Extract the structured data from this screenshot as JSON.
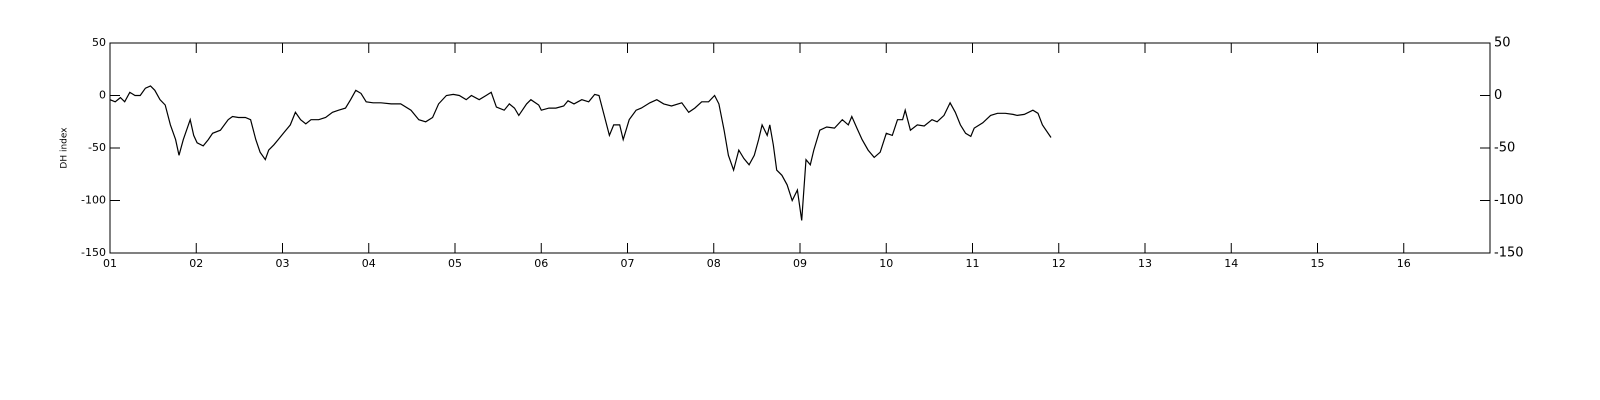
{
  "chart_data": {
    "type": "line",
    "ylabel": "DH index",
    "x": [
      1.0,
      1.06,
      1.12,
      1.17,
      1.23,
      1.29,
      1.35,
      1.41,
      1.47,
      1.52,
      1.58,
      1.64,
      1.7,
      1.76,
      1.8,
      1.85,
      1.93,
      1.97,
      2.01,
      2.08,
      2.14,
      2.19,
      2.28,
      2.37,
      2.42,
      2.49,
      2.57,
      2.63,
      2.69,
      2.74,
      2.8,
      2.84,
      2.9,
      2.95,
      3.02,
      3.09,
      3.15,
      3.21,
      3.27,
      3.33,
      3.42,
      3.5,
      3.58,
      3.65,
      3.73,
      3.79,
      3.85,
      3.91,
      3.97,
      4.05,
      4.14,
      4.26,
      4.37,
      4.49,
      4.58,
      4.66,
      4.74,
      4.81,
      4.9,
      4.98,
      5.05,
      5.13,
      5.19,
      5.28,
      5.36,
      5.42,
      5.48,
      5.57,
      5.63,
      5.69,
      5.74,
      5.83,
      5.88,
      5.97,
      6.0,
      6.09,
      6.17,
      6.26,
      6.31,
      6.38,
      6.47,
      6.55,
      6.62,
      6.67,
      6.73,
      6.79,
      6.84,
      6.91,
      6.95,
      7.02,
      7.1,
      7.16,
      7.26,
      7.34,
      7.42,
      7.51,
      7.63,
      7.71,
      7.78,
      7.86,
      7.94,
      8.01,
      8.06,
      8.12,
      8.17,
      8.23,
      8.29,
      8.35,
      8.41,
      8.47,
      8.52,
      8.56,
      8.62,
      8.65,
      8.69,
      8.73,
      8.79,
      8.85,
      8.91,
      8.97,
      9.02,
      9.07,
      9.12,
      9.16,
      9.23,
      9.31,
      9.4,
      9.49,
      9.56,
      9.6,
      9.66,
      9.72,
      9.79,
      9.86,
      9.93,
      10.0,
      10.07,
      10.13,
      10.19,
      10.22,
      10.28,
      10.36,
      10.44,
      10.53,
      10.59,
      10.67,
      10.74,
      10.8,
      10.86,
      10.92,
      10.98,
      11.02,
      11.12,
      11.21,
      11.29,
      11.38,
      11.47,
      11.52,
      11.6,
      11.7,
      11.76,
      11.81,
      11.91
    ],
    "values": [
      -4,
      -6,
      -2,
      -6,
      3,
      0,
      0,
      7,
      9,
      5,
      -4,
      -9,
      -28,
      -42,
      -57,
      -42,
      -23,
      -38,
      -45,
      -48,
      -42,
      -36,
      -33,
      -23,
      -20,
      -21,
      -21,
      -23,
      -42,
      -54,
      -61,
      -52,
      -47,
      -42,
      -35,
      -28,
      -16,
      -23,
      -27,
      -23,
      -23,
      -21,
      -16,
      -14,
      -12,
      -4,
      5,
      2,
      -6,
      -7,
      -7,
      -8,
      -8,
      -14,
      -23,
      -25,
      -21,
      -8,
      0,
      1,
      0,
      -4,
      0,
      -4,
      0,
      3,
      -11,
      -14,
      -8,
      -12,
      -19,
      -8,
      -4,
      -9,
      -14,
      -12,
      -12,
      -10,
      -5,
      -8,
      -4,
      -6,
      1,
      0,
      -19,
      -38,
      -28,
      -28,
      -42,
      -23,
      -14,
      -12,
      -7,
      -4,
      -8,
      -10,
      -7,
      -16,
      -12,
      -6,
      -6,
      0,
      -8,
      -33,
      -57,
      -71,
      -52,
      -60,
      -66,
      -57,
      -42,
      -28,
      -38,
      -28,
      -47,
      -71,
      -76,
      -85,
      -100,
      -90,
      -119,
      -61,
      -66,
      -52,
      -33,
      -30,
      -31,
      -23,
      -28,
      -20,
      -31,
      -42,
      -52,
      -59,
      -54,
      -36,
      -38,
      -23,
      -23,
      -14,
      -33,
      -28,
      -29,
      -23,
      -25,
      -19,
      -7,
      -16,
      -28,
      -36,
      -39,
      -31,
      -26,
      -19,
      -17,
      -17,
      -18,
      -19,
      -18,
      -14,
      -17,
      -28,
      -40
    ],
    "color": "#000000",
    "xlim": [
      1,
      17
    ],
    "xticks": [
      {
        "value": 1,
        "label": "01"
      },
      {
        "value": 2,
        "label": "02"
      },
      {
        "value": 3,
        "label": "03"
      },
      {
        "value": 4,
        "label": "04"
      },
      {
        "value": 5,
        "label": "05"
      },
      {
        "value": 6,
        "label": "06"
      },
      {
        "value": 7,
        "label": "07"
      },
      {
        "value": 8,
        "label": "08"
      },
      {
        "value": 9,
        "label": "09"
      },
      {
        "value": 10,
        "label": "10"
      },
      {
        "value": 11,
        "label": "11"
      },
      {
        "value": 12,
        "label": "12"
      },
      {
        "value": 13,
        "label": "13"
      },
      {
        "value": 14,
        "label": "14"
      },
      {
        "value": 15,
        "label": "15"
      },
      {
        "value": 16,
        "label": "16"
      }
    ],
    "ylim": [
      -150,
      50
    ],
    "yticks": [
      -150,
      -100,
      -50,
      0,
      50
    ]
  }
}
